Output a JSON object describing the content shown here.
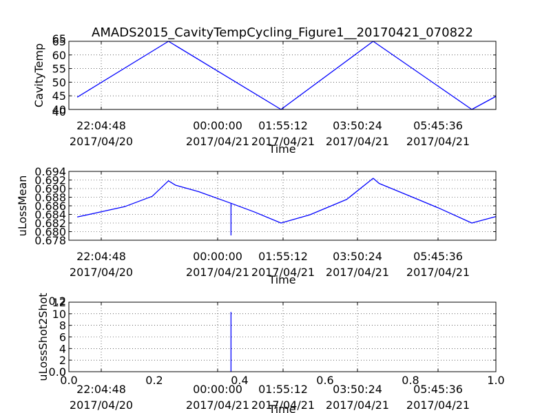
{
  "figure": {
    "title": "AMADS2015_CavityTempCycling_Figure1__20170421_070822"
  },
  "colors": {
    "series": "#0000ff",
    "axis": "#000000",
    "background": "#ffffff"
  },
  "chart_data": [
    {
      "type": "line",
      "ylabel": "CavityTemp",
      "xlabel": "Time",
      "ylim": [
        40,
        65
      ],
      "yticks": [
        "40",
        "45",
        "50",
        "55",
        "60",
        "65"
      ],
      "xlim_hours_from_first_tick": [
        -1.0,
        8.22
      ],
      "xtick_labels": [
        [
          "22:04:48",
          "2017/04/20"
        ],
        [
          "00:00:00",
          "2017/04/21"
        ],
        [
          "01:55:12",
          "2017/04/21"
        ],
        [
          "03:50:24",
          "2017/04/21"
        ],
        [
          "05:45:36",
          "2017/04/21"
        ]
      ],
      "overlap_labels": {
        "top": "65",
        "bottom": "40"
      },
      "series": [
        {
          "x": [
            -0.82,
            1.15,
            3.58,
            5.57,
            7.7,
            8.22
          ],
          "y": [
            44.5,
            65.0,
            40.0,
            65.0,
            40.0,
            44.8
          ]
        }
      ],
      "grid": true
    },
    {
      "type": "line",
      "ylabel": "uLossMean",
      "xlabel": "Time",
      "ylim": [
        0.678,
        0.694
      ],
      "yticks": [
        "0.678",
        "0.680",
        "0.682",
        "0.684",
        "0.686",
        "0.688",
        "0.690",
        "0.692",
        "0.694"
      ],
      "xlim_hours_from_first_tick": [
        -1.0,
        8.22
      ],
      "xtick_labels": [
        [
          "22:04:48",
          "2017/04/20"
        ],
        [
          "00:00:00",
          "2017/04/21"
        ],
        [
          "01:55:12",
          "2017/04/21"
        ],
        [
          "03:50:24",
          "2017/04/21"
        ],
        [
          "05:45:36",
          "2017/04/21"
        ]
      ],
      "series": [
        {
          "x": [
            -0.82,
            0.2,
            0.8,
            1.15,
            1.3,
            1.8,
            2.5,
            2.5,
            2.5,
            3.0,
            3.58,
            4.2,
            5.0,
            5.57,
            5.7,
            6.4,
            7.0,
            7.7,
            8.22
          ],
          "y": [
            0.6834,
            0.6858,
            0.6882,
            0.6918,
            0.6908,
            0.6893,
            0.6866,
            0.6792,
            0.6866,
            0.6846,
            0.682,
            0.6839,
            0.6875,
            0.6924,
            0.6912,
            0.6881,
            0.6854,
            0.682,
            0.6835
          ]
        }
      ],
      "grid": true
    },
    {
      "type": "line",
      "ylabel": "uLossShot2Shot",
      "xlabel": "Time",
      "ylim": [
        0,
        12
      ],
      "yticks": [
        "0",
        "2",
        "4",
        "6",
        "8",
        "10",
        "12"
      ],
      "xlim_hours_from_first_tick": [
        -1.0,
        8.22
      ],
      "xtick_labels": [
        [
          "22:04:48",
          "2017/04/20"
        ],
        [
          "00:00:00",
          "2017/04/21"
        ],
        [
          "01:55:12",
          "2017/04/21"
        ],
        [
          "03:50:24",
          "2017/04/21"
        ],
        [
          "05:45:36",
          "2017/04/21"
        ]
      ],
      "overlap_yticks": [
        "0.0",
        "0.2"
      ],
      "overlap_xticks": [
        "0.0",
        "0.2",
        "0.4",
        "0.6",
        "0.8",
        "1.0"
      ],
      "series": [
        {
          "x": [
            2.5,
            2.5
          ],
          "y": [
            0,
            10.3
          ]
        }
      ],
      "grid": true
    }
  ]
}
